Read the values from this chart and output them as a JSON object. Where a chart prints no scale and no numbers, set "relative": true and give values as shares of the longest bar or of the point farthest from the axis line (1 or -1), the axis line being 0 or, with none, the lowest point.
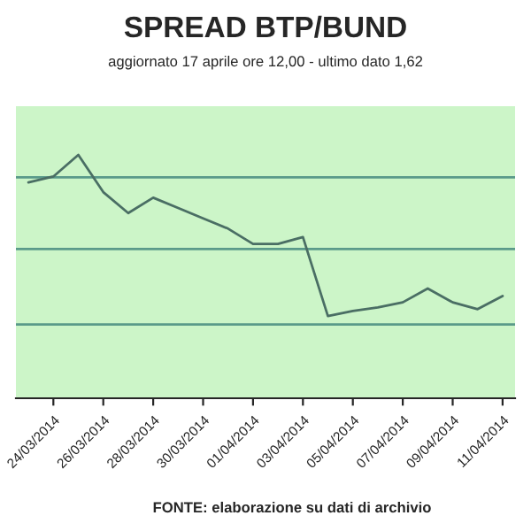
{
  "chart_data": {
    "type": "line",
    "title": "SPREAD BTP/BUND",
    "subtitle": "aggiornato 17 aprile ore 12,00 - ultimo dato 1,62",
    "categories": [
      null,
      "24/03/2014",
      null,
      "26/03/2014",
      null,
      "28/03/2014",
      null,
      "30/03/2014",
      null,
      "01/04/2014",
      null,
      "03/04/2014",
      null,
      "05/04/2014",
      null,
      "07/04/2014",
      null,
      "09/04/2014",
      null,
      "11/04/2014"
    ],
    "series": [
      {
        "color": "#4a6e64",
        "values": [
          0.887,
          0.911,
          1.0,
          0.847,
          0.761,
          0.824,
          0.782,
          0.739,
          0.697,
          0.634,
          0.634,
          0.662,
          0.338,
          0.359,
          0.373,
          0.394,
          0.451,
          0.394,
          0.366,
          0.42
        ]
      }
    ],
    "relative": true,
    "ref_lines": [
      {
        "axis": "y",
        "value": 0.303,
        "color": "#5a9a8a"
      },
      {
        "axis": "y",
        "value": 0.613,
        "color": "#5a9a8a"
      },
      {
        "axis": "y",
        "value": 0.908,
        "color": "#5a9a8a"
      }
    ],
    "marker": "none",
    "line_style": "solid",
    "annotations": [
      "FONTE: elaborazione su dati di archivio"
    ]
  }
}
